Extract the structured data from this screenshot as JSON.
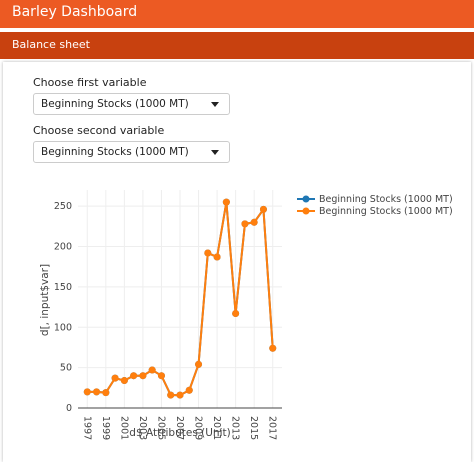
{
  "header": {
    "title": "Barley Dashboard"
  },
  "tab": {
    "title": "Balance sheet"
  },
  "controls": [
    {
      "label": "Choose first variable",
      "value": "Beginning Stocks (1000 MT)"
    },
    {
      "label": "Choose second variable",
      "value": "Beginning Stocks (1000 MT)"
    }
  ],
  "chart_data": {
    "type": "line",
    "x_label": "d$ Attributes (Unit)",
    "y_label": "d[, input$var]",
    "x": [
      1997,
      1998,
      1999,
      2000,
      2001,
      2002,
      2003,
      2004,
      2005,
      2006,
      2007,
      2008,
      2009,
      2010,
      2011,
      2012,
      2013,
      2014,
      2015,
      2016,
      2017
    ],
    "series": [
      {
        "name": "Beginning Stocks (1000 MT)",
        "color": "#1f77b4",
        "values": [
          20,
          20,
          19,
          37,
          34,
          40,
          40,
          47,
          40,
          16,
          16,
          22,
          54,
          192,
          187,
          255,
          117,
          228,
          230,
          246,
          74
        ]
      },
      {
        "name": "Beginning Stocks (1000 MT)",
        "color": "#ff7f0e",
        "values": [
          20,
          20,
          19,
          37,
          34,
          40,
          40,
          47,
          40,
          16,
          16,
          22,
          54,
          192,
          187,
          255,
          117,
          228,
          230,
          246,
          74
        ]
      }
    ],
    "xlim": [
      1996,
      2018
    ],
    "ylim": [
      0,
      270
    ],
    "xticks": [
      1997,
      1999,
      2001,
      2003,
      2005,
      2007,
      2009,
      2011,
      2013,
      2015,
      2017
    ],
    "yticks": [
      0,
      50,
      100,
      150,
      200,
      250
    ],
    "grid": true,
    "markers": true,
    "legend": "outside-right"
  }
}
